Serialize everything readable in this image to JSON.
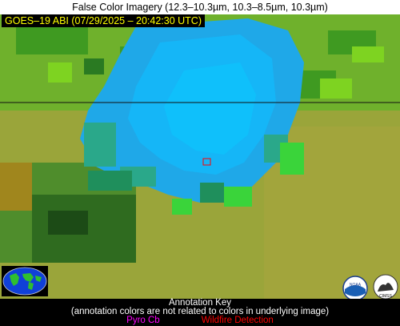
{
  "title": "False Color Imagery (12.3–10.3µm, 10.3–8.5µm, 10.3µm)",
  "timestamp_label": "GOES–19 ABI (07/29/2025 – 20:42:30 UTC)",
  "annotation_key": {
    "heading": "Annotation Key",
    "note": "(annotation colors are not related to colors in underlying image)",
    "pyro_cb": "Pyro Cb",
    "wildfire_detection": "Wildfire Detection"
  },
  "logos": {
    "noaa_text": "NOAA",
    "cimss_text": "CIMSS"
  },
  "colors": {
    "pyro_cb": "#ff00ff",
    "wildfire_detection": "#ff0000",
    "timestamp_text": "#ffff00",
    "marker": "#ff0000"
  }
}
